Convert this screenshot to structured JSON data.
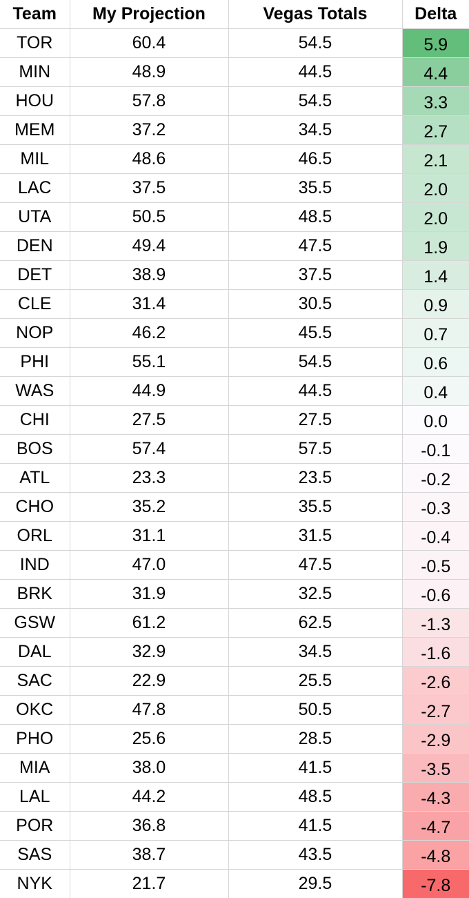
{
  "chart_data": {
    "type": "table",
    "columns": [
      "Team",
      "My Projection",
      "Vegas Totals",
      "Delta"
    ],
    "rows": [
      [
        "TOR",
        "60.4",
        "54.5",
        "5.9"
      ],
      [
        "MIN",
        "48.9",
        "44.5",
        "4.4"
      ],
      [
        "HOU",
        "57.8",
        "54.5",
        "3.3"
      ],
      [
        "MEM",
        "37.2",
        "34.5",
        "2.7"
      ],
      [
        "MIL",
        "48.6",
        "46.5",
        "2.1"
      ],
      [
        "LAC",
        "37.5",
        "35.5",
        "2.0"
      ],
      [
        "UTA",
        "50.5",
        "48.5",
        "2.0"
      ],
      [
        "DEN",
        "49.4",
        "47.5",
        "1.9"
      ],
      [
        "DET",
        "38.9",
        "37.5",
        "1.4"
      ],
      [
        "CLE",
        "31.4",
        "30.5",
        "0.9"
      ],
      [
        "NOP",
        "46.2",
        "45.5",
        "0.7"
      ],
      [
        "PHI",
        "55.1",
        "54.5",
        "0.6"
      ],
      [
        "WAS",
        "44.9",
        "44.5",
        "0.4"
      ],
      [
        "CHI",
        "27.5",
        "27.5",
        "0.0"
      ],
      [
        "BOS",
        "57.4",
        "57.5",
        "-0.1"
      ],
      [
        "ATL",
        "23.3",
        "23.5",
        "-0.2"
      ],
      [
        "CHO",
        "35.2",
        "35.5",
        "-0.3"
      ],
      [
        "ORL",
        "31.1",
        "31.5",
        "-0.4"
      ],
      [
        "IND",
        "47.0",
        "47.5",
        "-0.5"
      ],
      [
        "BRK",
        "31.9",
        "32.5",
        "-0.6"
      ],
      [
        "GSW",
        "61.2",
        "62.5",
        "-1.3"
      ],
      [
        "DAL",
        "32.9",
        "34.5",
        "-1.6"
      ],
      [
        "SAC",
        "22.9",
        "25.5",
        "-2.6"
      ],
      [
        "OKC",
        "47.8",
        "50.5",
        "-2.7"
      ],
      [
        "PHO",
        "25.6",
        "28.5",
        "-2.9"
      ],
      [
        "MIA",
        "38.0",
        "41.5",
        "-3.5"
      ],
      [
        "LAL",
        "44.2",
        "48.5",
        "-4.3"
      ],
      [
        "POR",
        "36.8",
        "41.5",
        "-4.7"
      ],
      [
        "SAS",
        "38.7",
        "43.5",
        "-4.8"
      ],
      [
        "NYK",
        "21.7",
        "29.5",
        "-7.8"
      ]
    ],
    "color_scale": {
      "column": "Delta",
      "max_value": 5.9,
      "mid_value": 0.0,
      "min_value": -7.8,
      "max_color": "#63be7b",
      "mid_color": "#fcfcff",
      "min_color": "#f8696b"
    }
  }
}
